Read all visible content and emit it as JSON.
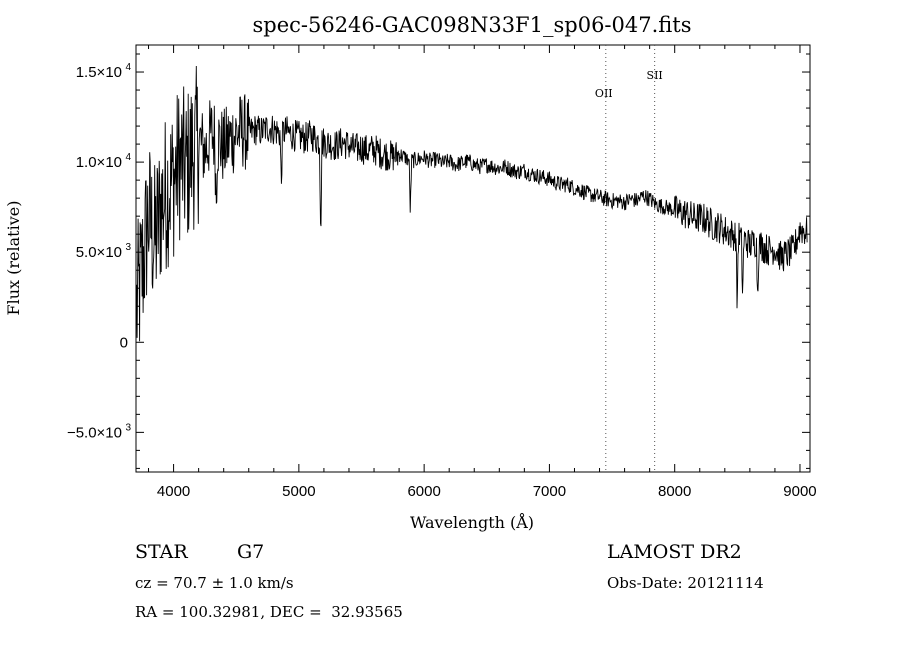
{
  "chart_data": {
    "type": "line",
    "title": "spec-56246-GAC098N33F1_sp06-047.fits",
    "xlabel": "Wavelength (Å)",
    "ylabel": "Flux (relative)",
    "xlim": [
      3700,
      9080
    ],
    "ylim": [
      -7200,
      16500
    ],
    "x_ticks": [
      {
        "value": 4000,
        "label": "4000"
      },
      {
        "value": 5000,
        "label": "5000"
      },
      {
        "value": 6000,
        "label": "6000"
      },
      {
        "value": 7000,
        "label": "7000"
      },
      {
        "value": 8000,
        "label": "8000"
      },
      {
        "value": 9000,
        "label": "9000"
      }
    ],
    "y_ticks": [
      {
        "value": 15000,
        "mantissa": "1.5×10",
        "exp": "4"
      },
      {
        "value": 10000,
        "mantissa": "1.0×10",
        "exp": "4"
      },
      {
        "value": 5000,
        "mantissa": "5.0×10",
        "exp": "3"
      },
      {
        "value": 0,
        "mantissa": "0",
        "exp": ""
      },
      {
        "value": -5000,
        "mantissa": "−5.0×10",
        "exp": "3"
      }
    ],
    "series": [
      {
        "x": [
          3700,
          3760,
          3800,
          3850,
          3900,
          3950,
          4000,
          4050,
          4100,
          4150,
          4200,
          4250,
          4300,
          4350,
          4400,
          4450,
          4500,
          4550,
          4600,
          4650,
          4700,
          4750,
          4800,
          4850,
          4900,
          4950,
          5000,
          5050,
          5100,
          5150,
          5200,
          5250,
          5300,
          5350,
          5400,
          5450,
          5500,
          5550,
          5600,
          5650,
          5700,
          5750,
          5800,
          5850,
          5890,
          5950,
          6000,
          6050,
          6100,
          6150,
          6200,
          6250,
          6300,
          6350,
          6400,
          6450,
          6500,
          6550,
          6600,
          6650,
          6700,
          6750,
          6800,
          6850,
          6900,
          6950,
          7000,
          7050,
          7100,
          7150,
          7200,
          7250,
          7300,
          7350,
          7400,
          7450,
          7500,
          7550,
          7600,
          7650,
          7700,
          7750,
          7800,
          7850,
          7900,
          7950,
          8000,
          8050,
          8100,
          8150,
          8200,
          8250,
          8300,
          8350,
          8400,
          8450,
          8500,
          8550,
          8600,
          8650,
          8700,
          8750,
          8800,
          8850,
          8900,
          8950,
          9000,
          9050
        ],
        "y": [
          2000,
          5000,
          7500,
          6000,
          8000,
          9000,
          9500,
          10500,
          10000,
          11000,
          11500,
          10800,
          11800,
          11500,
          11000,
          11500,
          11800,
          12000,
          11700,
          11900,
          11800,
          12000,
          11900,
          11700,
          11800,
          11600,
          11500,
          11400,
          11600,
          11300,
          11200,
          11100,
          11000,
          11200,
          11000,
          10800,
          10900,
          10700,
          10800,
          10600,
          10500,
          10400,
          10500,
          10300,
          10100,
          10200,
          10300,
          10100,
          10200,
          10000,
          10100,
          9900,
          10000,
          10100,
          9900,
          9800,
          9900,
          9800,
          9700,
          9800,
          9600,
          9500,
          9600,
          9400,
          9300,
          9200,
          9100,
          8900,
          8800,
          8800,
          8600,
          8500,
          8300,
          8200,
          8100,
          8000,
          7900,
          7900,
          7800,
          8000,
          7900,
          8200,
          8000,
          7700,
          7600,
          7500,
          7400,
          7300,
          7200,
          7000,
          7000,
          6900,
          6600,
          6500,
          6300,
          6100,
          6000,
          5800,
          5500,
          5700,
          5400,
          5200,
          5300,
          4800,
          5000,
          5200,
          6400,
          6200
        ]
      }
    ],
    "features": [
      {
        "label": "OII",
        "x": 7450
      },
      {
        "label": "SII",
        "x": 7840
      }
    ]
  },
  "info": {
    "object_class": "STAR",
    "subclass": "G7",
    "cz": "cz = 70.7 ± 1.0 km/s",
    "radec": "RA = 100.32981, DEC =  32.93565",
    "survey": "LAMOST DR2",
    "obs_date": "Obs-Date: 20121114"
  }
}
